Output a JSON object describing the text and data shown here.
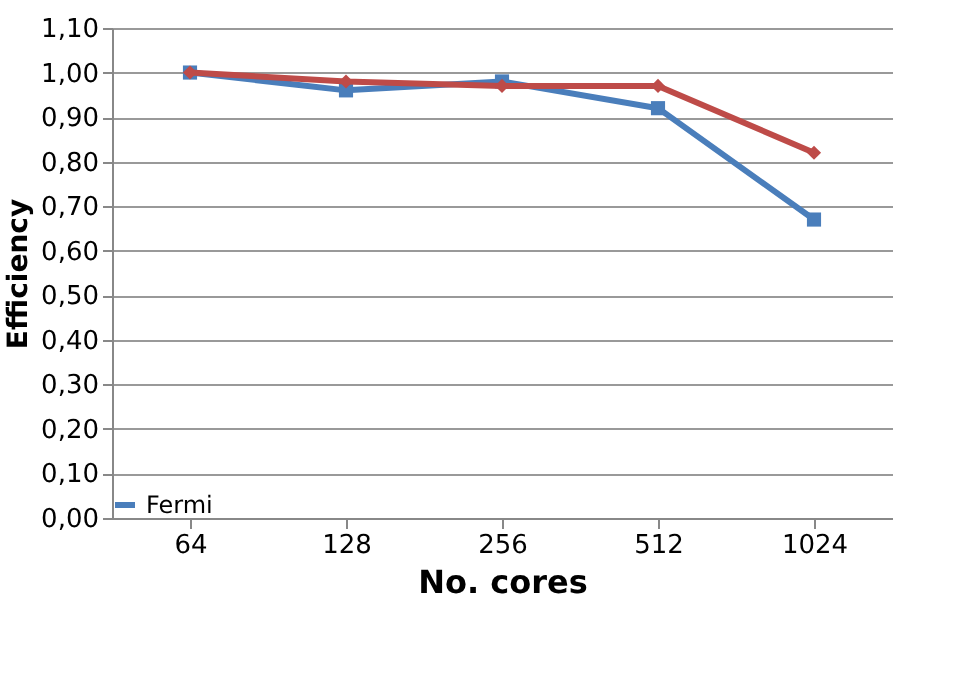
{
  "chart_data": {
    "type": "line",
    "xlabel": "No. cores",
    "ylabel": "Efficiency",
    "categories": [
      "64",
      "128",
      "256",
      "512",
      "1024"
    ],
    "series": [
      {
        "name": "Fermi",
        "color": "#4a7ebb",
        "marker": "square",
        "values": [
          1.0,
          0.96,
          0.98,
          0.92,
          0.67
        ]
      },
      {
        "color": "#be4b48",
        "marker": "diamond",
        "values": [
          1.0,
          0.98,
          0.97,
          0.97,
          0.82
        ]
      }
    ],
    "ylim": [
      0,
      1.1
    ],
    "yticks": [
      {
        "value": 0,
        "label": "0,00"
      },
      {
        "value": 0.1,
        "label": "0,10"
      },
      {
        "value": 0.2,
        "label": "0,20"
      },
      {
        "value": 0.3,
        "label": "0,30"
      },
      {
        "value": 0.4,
        "label": "0,40"
      },
      {
        "value": 0.5,
        "label": "0,50"
      },
      {
        "value": 0.6,
        "label": "0,60"
      },
      {
        "value": 0.7,
        "label": "0,70"
      },
      {
        "value": 0.8,
        "label": "0,80"
      },
      {
        "value": 0.9,
        "label": "0,90"
      },
      {
        "value": 1.0,
        "label": "1,00"
      },
      {
        "value": 1.1,
        "label": "1,10"
      }
    ],
    "grid": "y",
    "legend": "bottom left",
    "line_style": "solid"
  }
}
